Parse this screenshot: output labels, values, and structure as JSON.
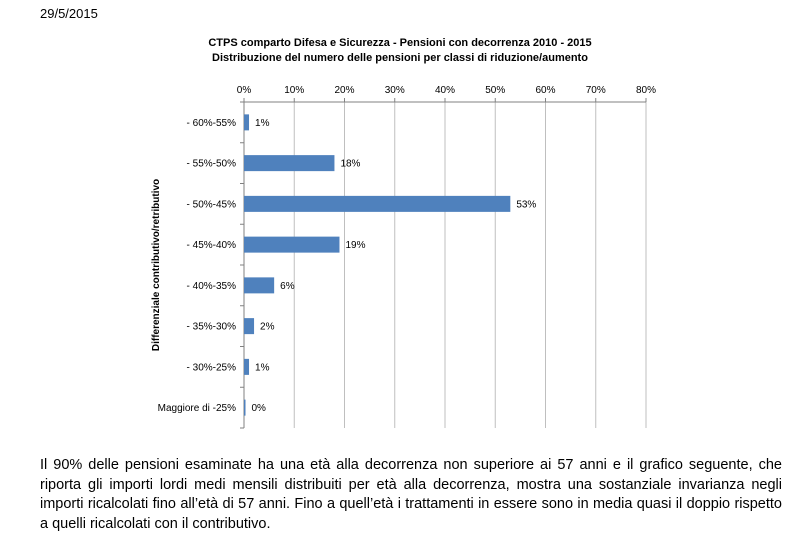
{
  "page": {
    "date": "29/5/2015",
    "paragraph": "Il 90% delle pensioni esaminate ha una età alla decorrenza non superiore ai 57 anni e il grafico seguente, che riporta gli importi lordi medi mensili distribuiti per età alla decorrenza, mostra una sostanziale invarianza negli importi ricalcolati fino all’età di 57 anni. Fino a quell’età i trattamenti in essere sono in media quasi il doppio rispetto a quelli ricalcolati con il contributivo."
  },
  "chart_data": {
    "type": "bar",
    "orientation": "horizontal",
    "title": "CTPS comparto Difesa e Sicurezza - Pensioni con decorrenza 2010 - 2015",
    "subtitle": "Distribuzione del numero delle pensioni per classi di riduzione/aumento",
    "xlabel": "",
    "ylabel": "Differenziale contributivo/retributivo",
    "xlim": [
      0,
      80
    ],
    "x_ticks": [
      "0%",
      "10%",
      "20%",
      "30%",
      "40%",
      "50%",
      "60%",
      "70%",
      "80%"
    ],
    "x_axis_position": "top",
    "grid": true,
    "categories": [
      "- 60%-55%",
      "- 55%-50%",
      "- 50%-45%",
      "- 45%-40%",
      "- 40%-35%",
      "- 35%-30%",
      "- 30%-25%",
      "Maggiore di -25%"
    ],
    "values": [
      1,
      18,
      53,
      19,
      6,
      2,
      1,
      0.3
    ],
    "value_labels": [
      "1%",
      "18%",
      "53%",
      "19%",
      "6%",
      "2%",
      "1%",
      "0%"
    ],
    "bar_color": "#4F81BD",
    "grid_color": "#BFBFBF"
  }
}
